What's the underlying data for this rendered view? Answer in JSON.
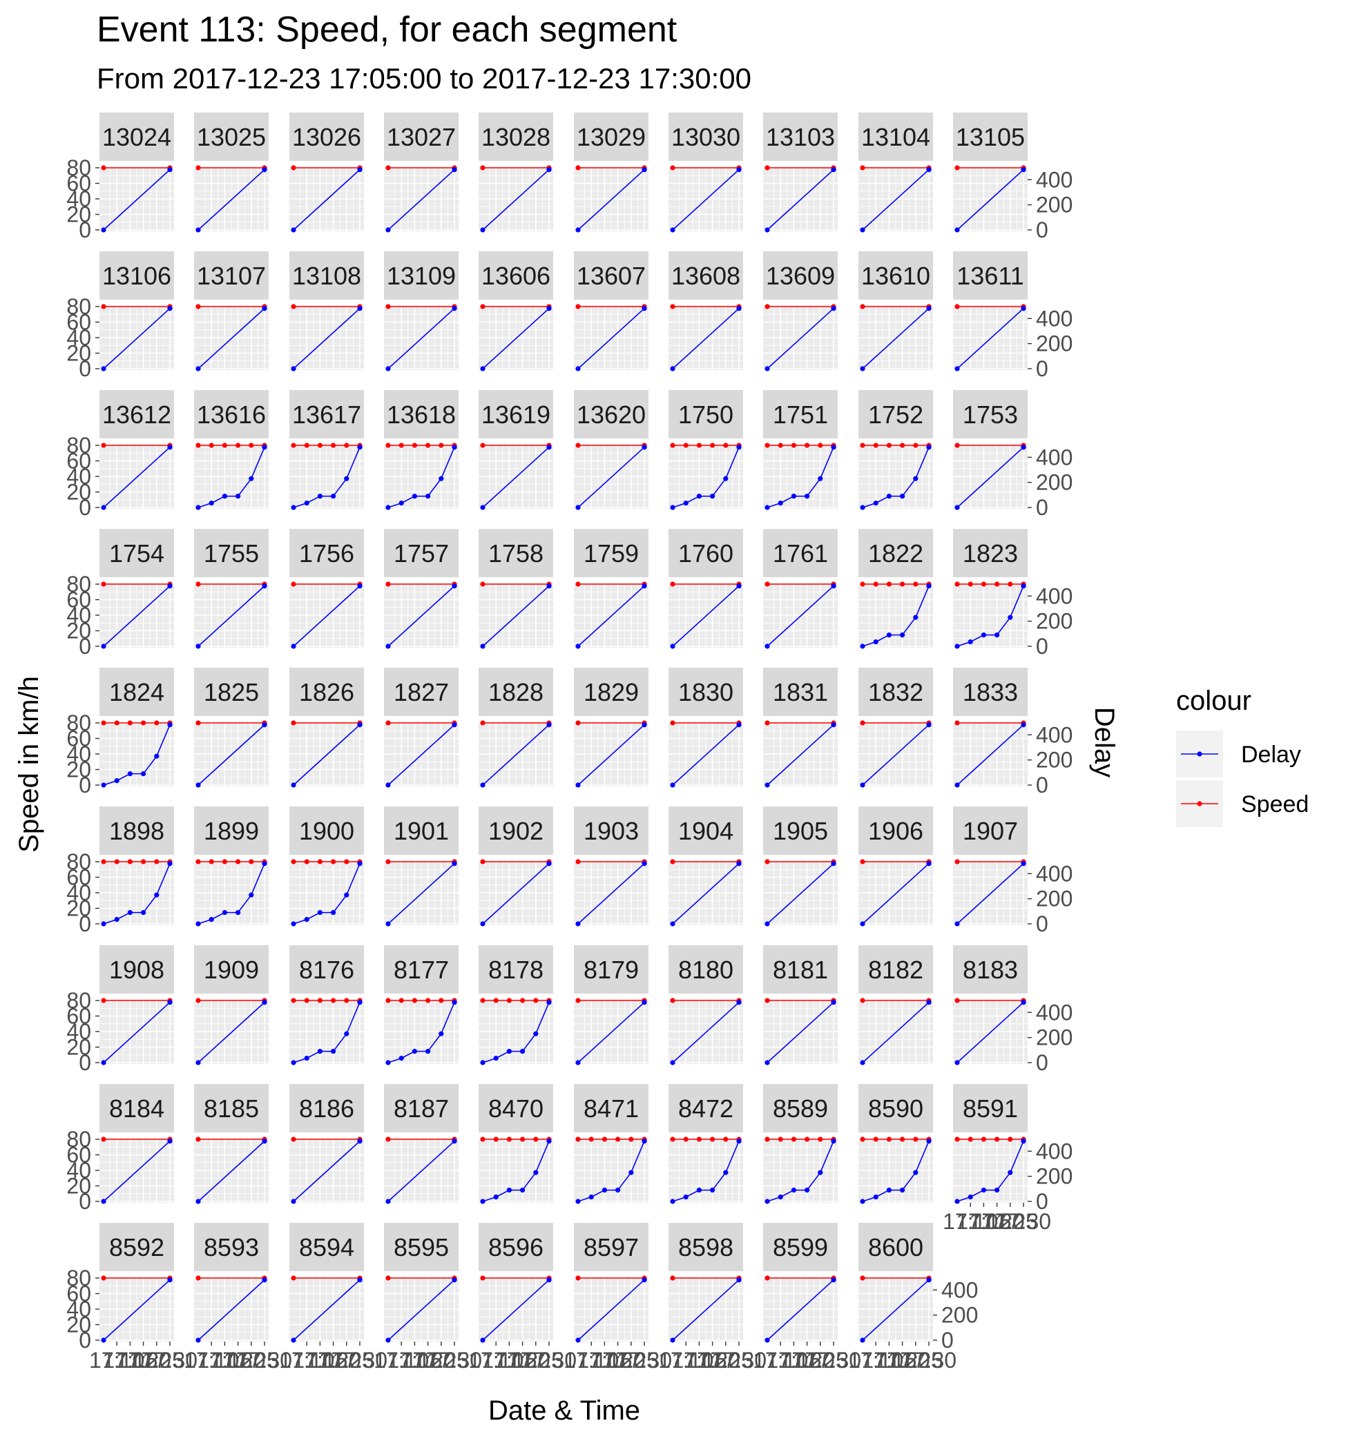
{
  "chart_data": {
    "type": "line",
    "title": "Event 113: Speed, for each segment",
    "subtitle": "From 2017-12-23 17:05:00 to 2017-12-23 17:30:00",
    "xlabel": "Date & Time",
    "ylabel": "Speed in km/h",
    "ylabel_secondary": "Delay",
    "xlim": [
      "17:05",
      "17:30"
    ],
    "ylim": [
      0,
      80
    ],
    "ylim_secondary": [
      0,
      490
    ],
    "x_tick_labels": [
      "17:10",
      "17:15",
      "17:20",
      "17:25",
      "17:30"
    ],
    "y_tick_labels": [
      "0",
      "20",
      "40",
      "60",
      "80"
    ],
    "y2_tick_labels": [
      "0",
      "200",
      "400"
    ],
    "y_ticks": [
      0,
      20,
      40,
      60,
      80
    ],
    "y2_ticks": [
      0,
      200,
      400
    ],
    "grid": true,
    "legend": {
      "title": "colour",
      "position": "right",
      "entries": [
        {
          "name": "Delay",
          "color": "#0000ff"
        },
        {
          "name": "Speed",
          "color": "#ff0000"
        }
      ]
    },
    "series_colors": {
      "Delay": "#0000ff",
      "Speed": "#ff0000"
    },
    "panel_types": {
      "A": {
        "x": [
          "17:05",
          "17:30"
        ],
        "Speed": [
          80,
          80
        ],
        "Delay": [
          0,
          480
        ]
      },
      "B": {
        "x": [
          "17:05",
          "17:10",
          "17:15",
          "17:20",
          "17:25",
          "17:30"
        ],
        "Speed": [
          80,
          80,
          80,
          80,
          80,
          80
        ],
        "Delay": [
          0,
          35,
          90,
          90,
          230,
          480
        ]
      }
    },
    "panels": [
      {
        "segment": "13024",
        "type": "A"
      },
      {
        "segment": "13025",
        "type": "A"
      },
      {
        "segment": "13026",
        "type": "A"
      },
      {
        "segment": "13027",
        "type": "A"
      },
      {
        "segment": "13028",
        "type": "A"
      },
      {
        "segment": "13029",
        "type": "A"
      },
      {
        "segment": "13030",
        "type": "A"
      },
      {
        "segment": "13103",
        "type": "A"
      },
      {
        "segment": "13104",
        "type": "A"
      },
      {
        "segment": "13105",
        "type": "A"
      },
      {
        "segment": "13106",
        "type": "A"
      },
      {
        "segment": "13107",
        "type": "A"
      },
      {
        "segment": "13108",
        "type": "A"
      },
      {
        "segment": "13109",
        "type": "A"
      },
      {
        "segment": "13606",
        "type": "A"
      },
      {
        "segment": "13607",
        "type": "A"
      },
      {
        "segment": "13608",
        "type": "A"
      },
      {
        "segment": "13609",
        "type": "A"
      },
      {
        "segment": "13610",
        "type": "A"
      },
      {
        "segment": "13611",
        "type": "A"
      },
      {
        "segment": "13612",
        "type": "A"
      },
      {
        "segment": "13616",
        "type": "B"
      },
      {
        "segment": "13617",
        "type": "B"
      },
      {
        "segment": "13618",
        "type": "B"
      },
      {
        "segment": "13619",
        "type": "A"
      },
      {
        "segment": "13620",
        "type": "A"
      },
      {
        "segment": "1750",
        "type": "B"
      },
      {
        "segment": "1751",
        "type": "B"
      },
      {
        "segment": "1752",
        "type": "B"
      },
      {
        "segment": "1753",
        "type": "A"
      },
      {
        "segment": "1754",
        "type": "A"
      },
      {
        "segment": "1755",
        "type": "A"
      },
      {
        "segment": "1756",
        "type": "A"
      },
      {
        "segment": "1757",
        "type": "A"
      },
      {
        "segment": "1758",
        "type": "A"
      },
      {
        "segment": "1759",
        "type": "A"
      },
      {
        "segment": "1760",
        "type": "A"
      },
      {
        "segment": "1761",
        "type": "A"
      },
      {
        "segment": "1822",
        "type": "B"
      },
      {
        "segment": "1823",
        "type": "B"
      },
      {
        "segment": "1824",
        "type": "B"
      },
      {
        "segment": "1825",
        "type": "A"
      },
      {
        "segment": "1826",
        "type": "A"
      },
      {
        "segment": "1827",
        "type": "A"
      },
      {
        "segment": "1828",
        "type": "A"
      },
      {
        "segment": "1829",
        "type": "A"
      },
      {
        "segment": "1830",
        "type": "A"
      },
      {
        "segment": "1831",
        "type": "A"
      },
      {
        "segment": "1832",
        "type": "A"
      },
      {
        "segment": "1833",
        "type": "A"
      },
      {
        "segment": "1898",
        "type": "B"
      },
      {
        "segment": "1899",
        "type": "B"
      },
      {
        "segment": "1900",
        "type": "B"
      },
      {
        "segment": "1901",
        "type": "A"
      },
      {
        "segment": "1902",
        "type": "A"
      },
      {
        "segment": "1903",
        "type": "A"
      },
      {
        "segment": "1904",
        "type": "A"
      },
      {
        "segment": "1905",
        "type": "A"
      },
      {
        "segment": "1906",
        "type": "A"
      },
      {
        "segment": "1907",
        "type": "A"
      },
      {
        "segment": "1908",
        "type": "A"
      },
      {
        "segment": "1909",
        "type": "A"
      },
      {
        "segment": "8176",
        "type": "B"
      },
      {
        "segment": "8177",
        "type": "B"
      },
      {
        "segment": "8178",
        "type": "B"
      },
      {
        "segment": "8179",
        "type": "A"
      },
      {
        "segment": "8180",
        "type": "A"
      },
      {
        "segment": "8181",
        "type": "A"
      },
      {
        "segment": "8182",
        "type": "A"
      },
      {
        "segment": "8183",
        "type": "A"
      },
      {
        "segment": "8184",
        "type": "A"
      },
      {
        "segment": "8185",
        "type": "A"
      },
      {
        "segment": "8186",
        "type": "A"
      },
      {
        "segment": "8187",
        "type": "A"
      },
      {
        "segment": "8470",
        "type": "B"
      },
      {
        "segment": "8471",
        "type": "B"
      },
      {
        "segment": "8472",
        "type": "B"
      },
      {
        "segment": "8589",
        "type": "B"
      },
      {
        "segment": "8590",
        "type": "B"
      },
      {
        "segment": "8591",
        "type": "B"
      },
      {
        "segment": "8592",
        "type": "A"
      },
      {
        "segment": "8593",
        "type": "A"
      },
      {
        "segment": "8594",
        "type": "A"
      },
      {
        "segment": "8595",
        "type": "A"
      },
      {
        "segment": "8596",
        "type": "A"
      },
      {
        "segment": "8597",
        "type": "A"
      },
      {
        "segment": "8598",
        "type": "A"
      },
      {
        "segment": "8599",
        "type": "A"
      },
      {
        "segment": "8600",
        "type": "A"
      }
    ]
  }
}
